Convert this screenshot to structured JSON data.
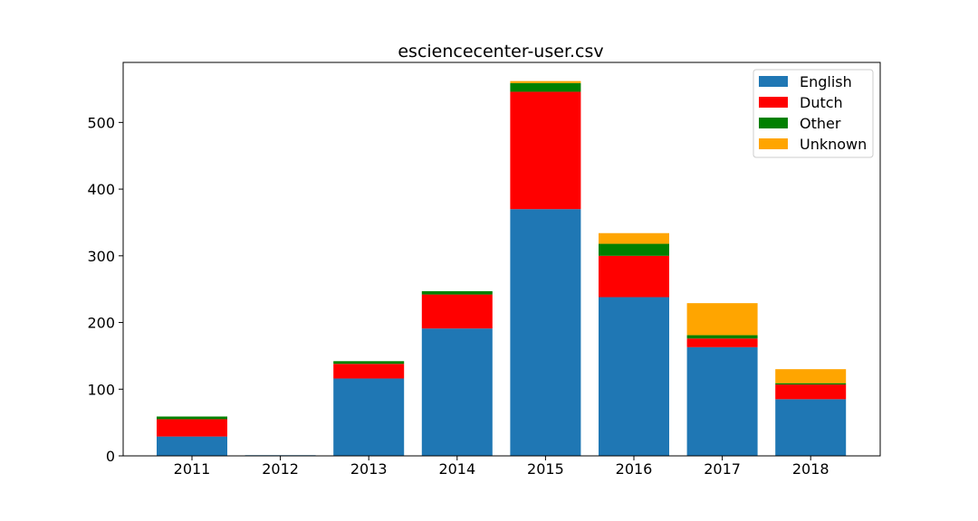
{
  "chart_data": {
    "type": "bar",
    "stacked": true,
    "title": "esciencecenter-user.csv",
    "xlabel": "",
    "ylabel": "",
    "categories": [
      "2011",
      "2012",
      "2013",
      "2014",
      "2015",
      "2016",
      "2017",
      "2018"
    ],
    "ylim": [
      0,
      590
    ],
    "yticks": [
      0,
      100,
      200,
      300,
      400,
      500
    ],
    "grid": false,
    "legend_position": "top-right",
    "series": [
      {
        "name": "English",
        "color": "#1f77b4",
        "values": [
          29,
          1,
          116,
          191,
          370,
          238,
          163,
          85
        ]
      },
      {
        "name": "Dutch",
        "color": "#ff0000",
        "values": [
          26,
          0,
          22,
          51,
          176,
          62,
          13,
          22
        ]
      },
      {
        "name": "Other",
        "color": "#008000",
        "values": [
          4,
          0,
          4,
          5,
          13,
          18,
          5,
          2
        ]
      },
      {
        "name": "Unknown",
        "color": "#ffa500",
        "values": [
          0,
          0,
          0,
          0,
          3,
          16,
          48,
          21
        ]
      }
    ]
  }
}
